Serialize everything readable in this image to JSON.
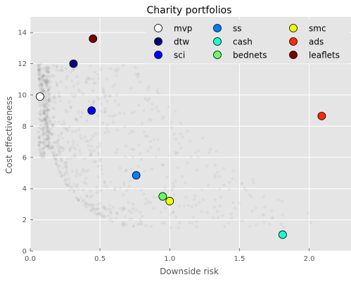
{
  "chart_data": {
    "type": "scatter",
    "title": "Charity portfolios",
    "xlabel": "Downside risk",
    "ylabel": "Cost effectiveness",
    "xlim": [
      0.0,
      2.3
    ],
    "ylim": [
      0,
      15
    ],
    "xticks": [
      0.0,
      0.5,
      1.0,
      1.5,
      2.0
    ],
    "xtick_labels": [
      "0.0",
      "0.5",
      "1.0",
      "1.5",
      "2.0"
    ],
    "yticks": [
      0,
      2,
      4,
      6,
      8,
      10,
      12,
      14
    ],
    "ytick_labels": [
      "0",
      "2",
      "4",
      "6",
      "8",
      "10",
      "12",
      "14"
    ],
    "grid": true,
    "legend_placement": "top-right",
    "legend_columns": 3,
    "background_color": "#e5e5e5",
    "grid_color": "#ffffff",
    "cloud_color": "#333333",
    "series": [
      {
        "name": "mvp",
        "x": 0.07,
        "y": 9.9,
        "color": "#ffffff"
      },
      {
        "name": "dtw",
        "x": 0.31,
        "y": 12.0,
        "color": "#00007f"
      },
      {
        "name": "sci",
        "x": 0.44,
        "y": 9.0,
        "color": "#0000ff"
      },
      {
        "name": "ss",
        "x": 0.76,
        "y": 4.85,
        "color": "#007fff"
      },
      {
        "name": "cash",
        "x": 1.81,
        "y": 1.05,
        "color": "#19ffcc"
      },
      {
        "name": "bednets",
        "x": 0.95,
        "y": 3.5,
        "color": "#66ff66"
      },
      {
        "name": "smc",
        "x": 1.0,
        "y": 3.2,
        "color": "#eeff00"
      },
      {
        "name": "ads",
        "x": 2.09,
        "y": 8.65,
        "color": "#ff2a00"
      },
      {
        "name": "leaflets",
        "x": 0.45,
        "y": 13.6,
        "color": "#7f0000"
      }
    ]
  }
}
